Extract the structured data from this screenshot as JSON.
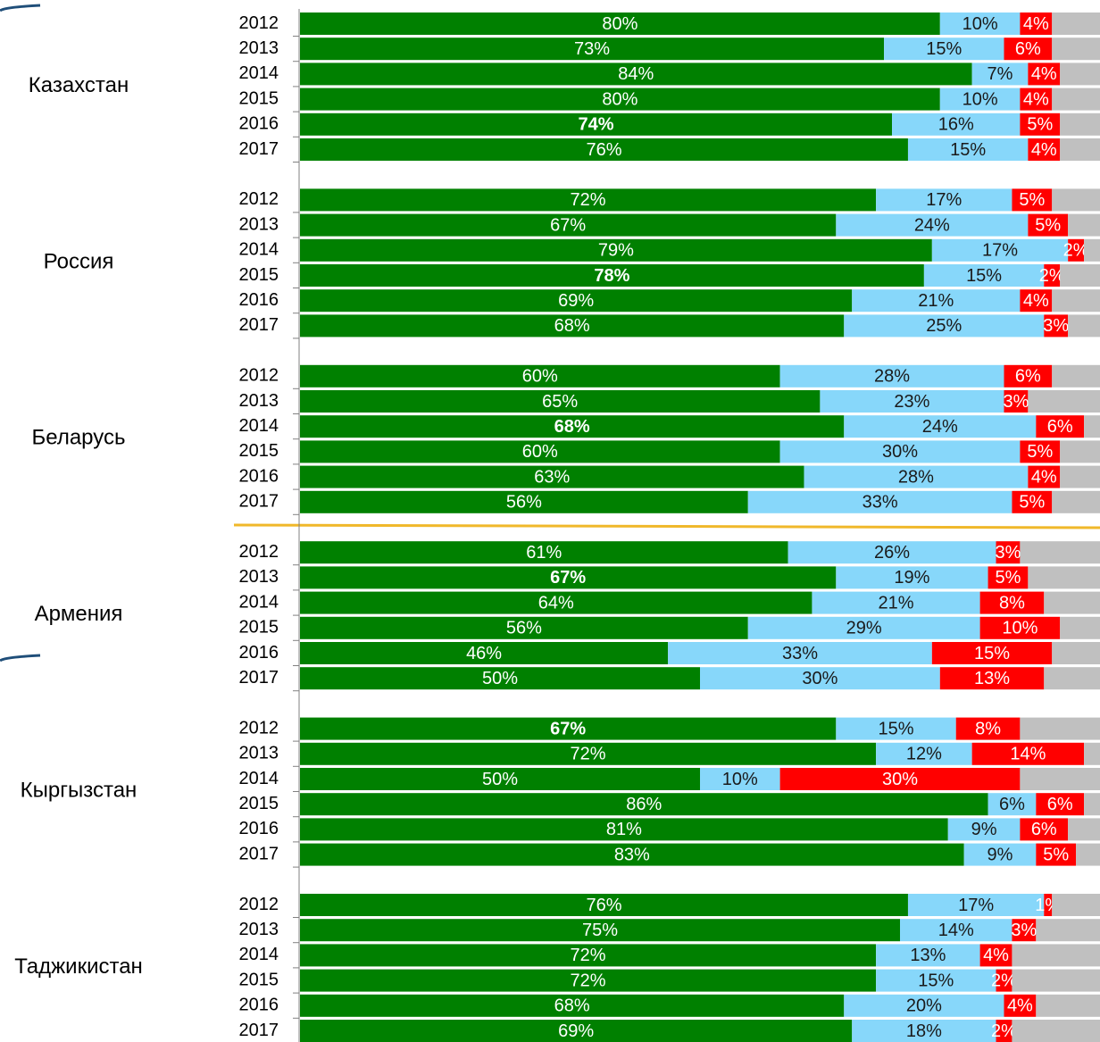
{
  "chart_data": {
    "type": "stacked_bar_h",
    "colors": [
      "#008000",
      "#87d7fa",
      "#ff0000",
      "#c0c0c0"
    ],
    "label_colors": [
      "#ffffff",
      "#1a1a1a",
      "#ffffff"
    ],
    "groups": [
      {
        "label": "Казахстан",
        "categories": [
          "2012",
          "2013",
          "2014",
          "2015",
          "2016",
          "2017"
        ],
        "bold": 4,
        "series": [
          {
            "values": [
              80,
              73,
              84,
              80,
              74,
              76
            ],
            "value_labels": [
              "80%",
              "73%",
              "84%",
              "80%",
              "74%",
              "76%"
            ]
          },
          {
            "values": [
              10,
              15,
              7,
              10,
              16,
              15
            ],
            "value_labels": [
              "10%",
              "15%",
              "7%",
              "10%",
              "16%",
              "15%"
            ]
          },
          {
            "values": [
              4,
              6,
              4,
              4,
              5,
              4
            ],
            "value_labels": [
              "4%",
              "6%",
              "4%",
              "4%",
              "5%",
              "4%"
            ]
          },
          {
            "values": [
              6,
              6,
              5,
              6,
              5,
              5
            ]
          }
        ]
      },
      {
        "label": "Россия",
        "categories": [
          "2012",
          "2013",
          "2014",
          "2015",
          "2016",
          "2017"
        ],
        "bold": 3,
        "series": [
          {
            "values": [
              72,
              67,
              79,
              78,
              69,
              68
            ],
            "value_labels": [
              "72%",
              "67%",
              "79%",
              "78%",
              "69%",
              "68%"
            ]
          },
          {
            "values": [
              17,
              24,
              17,
              15,
              21,
              25
            ],
            "value_labels": [
              "17%",
              "24%",
              "17%",
              "15%",
              "21%",
              "25%"
            ]
          },
          {
            "values": [
              5,
              5,
              2,
              2,
              4,
              3
            ],
            "value_labels": [
              "5%",
              "5%",
              "2%",
              "2%",
              "4%",
              "3%"
            ]
          },
          {
            "values": [
              6,
              4,
              2,
              5,
              6,
              4
            ]
          }
        ]
      },
      {
        "label": "Беларусь",
        "categories": [
          "2012",
          "2013",
          "2014",
          "2015",
          "2016",
          "2017"
        ],
        "bold": 2,
        "series": [
          {
            "values": [
              60,
              65,
              68,
              60,
              63,
              56
            ],
            "value_labels": [
              "60%",
              "65%",
              "68%",
              "60%",
              "63%",
              "56%"
            ]
          },
          {
            "values": [
              28,
              23,
              24,
              30,
              28,
              33
            ],
            "value_labels": [
              "28%",
              "23%",
              "24%",
              "30%",
              "28%",
              "33%"
            ]
          },
          {
            "values": [
              6,
              3,
              6,
              5,
              4,
              5
            ],
            "value_labels": [
              "6%",
              "3%",
              "6%",
              "5%",
              "4%",
              "5%"
            ]
          },
          {
            "values": [
              6,
              9,
              2,
              5,
              5,
              6
            ]
          }
        ]
      },
      {
        "label": "Армения",
        "categories": [
          "2012",
          "2013",
          "2014",
          "2015",
          "2016",
          "2017"
        ],
        "bold": 1,
        "series": [
          {
            "values": [
              61,
              67,
              64,
              56,
              46,
              50
            ],
            "value_labels": [
              "61%",
              "67%",
              "64%",
              "56%",
              "46%",
              "50%"
            ]
          },
          {
            "values": [
              26,
              19,
              21,
              29,
              33,
              30
            ],
            "value_labels": [
              "26%",
              "19%",
              "21%",
              "29%",
              "33%",
              "30%"
            ]
          },
          {
            "values": [
              3,
              5,
              8,
              10,
              15,
              13
            ],
            "value_labels": [
              "3%",
              "5%",
              "8%",
              "10%",
              "15%",
              "13%"
            ]
          },
          {
            "values": [
              10,
              9,
              7,
              5,
              6,
              7
            ]
          }
        ]
      },
      {
        "label": "Кыргызстан",
        "categories": [
          "2012",
          "2013",
          "2014",
          "2015",
          "2016",
          "2017"
        ],
        "bold": 0,
        "series": [
          {
            "values": [
              67,
              72,
              50,
              86,
              81,
              83
            ],
            "value_labels": [
              "67%",
              "72%",
              "50%",
              "86%",
              "81%",
              "83%"
            ]
          },
          {
            "values": [
              15,
              12,
              10,
              6,
              9,
              9
            ],
            "value_labels": [
              "15%",
              "12%",
              "10%",
              "6%",
              "9%",
              "9%"
            ]
          },
          {
            "values": [
              8,
              14,
              30,
              6,
              6,
              5
            ],
            "value_labels": [
              "8%",
              "14%",
              "30%",
              "6%",
              "6%",
              "5%"
            ]
          },
          {
            "values": [
              10,
              2,
              10,
              2,
              4,
              3
            ]
          }
        ]
      },
      {
        "label": "Таджикистан",
        "categories": [
          "2012",
          "2013",
          "2014",
          "2015",
          "2016",
          "2017"
        ],
        "series": [
          {
            "values": [
              76,
              75,
              72,
              72,
              68,
              69
            ],
            "value_labels": [
              "76%",
              "75%",
              "72%",
              "72%",
              "68%",
              "69%"
            ]
          },
          {
            "values": [
              17,
              14,
              13,
              15,
              20,
              18
            ],
            "value_labels": [
              "17%",
              "14%",
              "13%",
              "15%",
              "20%",
              "18%"
            ]
          },
          {
            "values": [
              1,
              3,
              4,
              2,
              4,
              2
            ],
            "value_labels": [
              "1%",
              "3%",
              "4%",
              "2%",
              "4%",
              "2%"
            ]
          },
          {
            "values": [
              6,
              8,
              11,
              11,
              8,
              11
            ]
          }
        ]
      }
    ]
  }
}
